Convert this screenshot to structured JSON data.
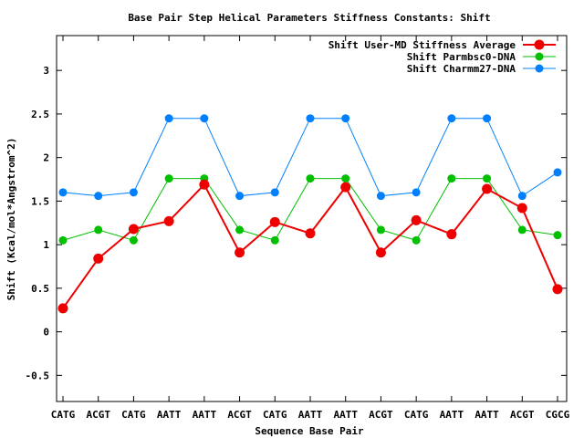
{
  "chart_data": {
    "type": "line",
    "title": "Base Pair Step Helical Parameters Stiffness Constants: Shift",
    "xlabel": "Sequence Base Pair",
    "ylabel": "Shift (Kcal/mol*Angstrom^2)",
    "categories": [
      "CATG",
      "ACGT",
      "CATG",
      "AATT",
      "AATT",
      "ACGT",
      "CATG",
      "AATT",
      "AATT",
      "ACGT",
      "CATG",
      "AATT",
      "AATT",
      "ACGT",
      "CGCG"
    ],
    "ylim": [
      -0.8,
      3.4
    ],
    "yticks": [
      -0.5,
      0,
      0.5,
      1,
      1.5,
      2,
      2.5,
      3
    ],
    "ytick_labels": [
      "-0.5",
      "0",
      "0.5",
      "1",
      "1.5",
      "2",
      "2.5",
      "3"
    ],
    "grid": false,
    "legend_position": "top-right",
    "series": [
      {
        "name": "Shift User-MD Stiffness Average",
        "color": "#ee0000",
        "emphasis": true,
        "values": [
          0.27,
          0.84,
          1.18,
          1.27,
          1.69,
          0.91,
          1.26,
          1.13,
          1.66,
          0.91,
          1.28,
          1.12,
          1.64,
          1.42,
          0.49
        ]
      },
      {
        "name": "Shift Parmbsc0-DNA",
        "color": "#00c000",
        "emphasis": false,
        "values": [
          1.05,
          1.17,
          1.05,
          1.76,
          1.76,
          1.17,
          1.05,
          1.76,
          1.76,
          1.17,
          1.05,
          1.76,
          1.76,
          1.17,
          1.11
        ]
      },
      {
        "name": "Shift Charmm27-DNA",
        "color": "#0080ff",
        "emphasis": false,
        "values": [
          1.6,
          1.56,
          1.6,
          2.45,
          2.45,
          1.56,
          1.6,
          2.45,
          2.45,
          1.56,
          1.6,
          2.45,
          2.45,
          1.56,
          1.83
        ]
      }
    ]
  }
}
